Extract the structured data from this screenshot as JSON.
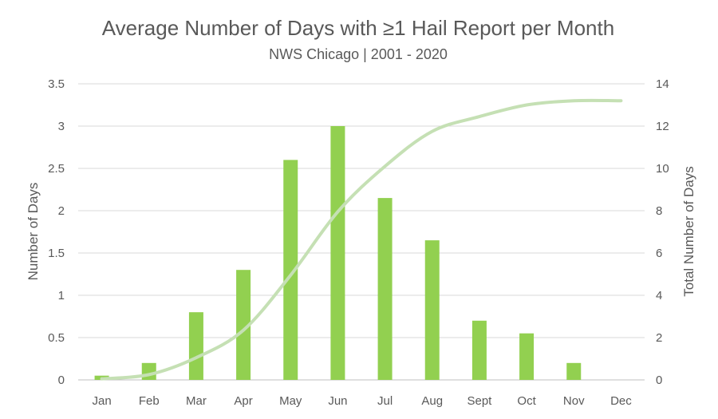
{
  "chart_data": {
    "type": "bar",
    "title": "Average Number of Days with ≥1 Hail Report per Month",
    "subtitle": "NWS Chicago | 2001 - 2020",
    "categories": [
      "Jan",
      "Feb",
      "Mar",
      "Apr",
      "May",
      "Jun",
      "Jul",
      "Aug",
      "Sept",
      "Oct",
      "Nov",
      "Dec"
    ],
    "series": [
      {
        "type": "bar",
        "axis": "left",
        "color": "#92D050",
        "values": [
          0.05,
          0.2,
          0.8,
          1.3,
          2.6,
          3.0,
          2.15,
          1.65,
          0.7,
          0.55,
          0.2,
          0.0
        ]
      },
      {
        "type": "line",
        "axis": "right",
        "color": "#C5E0B4",
        "values": [
          0.05,
          0.25,
          1.05,
          2.35,
          4.95,
          7.95,
          10.1,
          11.75,
          12.45,
          13.0,
          13.2,
          13.2
        ]
      }
    ],
    "ylabel": "Number of Days",
    "y2label": "Total Number of Days",
    "ylim": [
      0,
      3.5
    ],
    "y2lim": [
      0,
      14
    ],
    "yticks": [
      "0",
      "0.5",
      "1",
      "1.5",
      "2",
      "2.5",
      "3",
      "3.5"
    ],
    "y2ticks": [
      "0",
      "2",
      "4",
      "6",
      "8",
      "10",
      "12",
      "14"
    ],
    "grid": true,
    "legend": "none"
  }
}
